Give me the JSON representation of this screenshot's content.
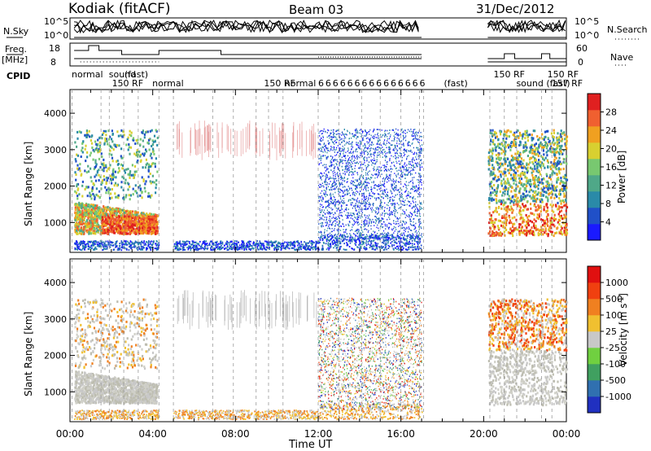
{
  "header": {
    "site": "Kodiak (fitACF)",
    "beam": "Beam 03",
    "date": "31/Dec/2012"
  },
  "strips": {
    "nsky_label": "N.Sky",
    "nsearch_label": "N.Search",
    "freq_label": "Freq.",
    "freq_unit": "[MHz]",
    "nave_label": "Nave",
    "cpid_label": "CPID",
    "nsky_ticks": [
      "10^5",
      "10^0"
    ],
    "freq_ticks": [
      "18",
      "8"
    ],
    "nave_ticks": [
      "60",
      "0"
    ]
  },
  "cpid_labels": [
    {
      "text": "normal",
      "t": 0.0,
      "row": 0
    },
    {
      "text": "sound",
      "t": 1.8,
      "row": 0
    },
    {
      "text": "(fast)",
      "t": 2.55,
      "row": 0
    },
    {
      "text": "normal",
      "t": 3.9,
      "row": 1
    },
    {
      "text": "150 RF",
      "t": 1.95,
      "row": 1
    },
    {
      "text": "150 RF",
      "t": 9.3,
      "row": 1
    },
    {
      "text": "normal",
      "t": 10.3,
      "row": 1
    },
    {
      "text": "150 RF",
      "t": 20.4,
      "row": 0
    },
    {
      "text": "sound (fast)",
      "t": 21.5,
      "row": 1
    },
    {
      "text": "157 RF",
      "t": 23.2,
      "row": 1
    },
    {
      "text": "150 RF",
      "t": 23.0,
      "row": 0
    },
    {
      "text": "(fast)",
      "t": 18.0,
      "row": 1
    }
  ],
  "chart_data": [
    {
      "type": "heatmap",
      "name": "Power panel",
      "xlabel": "Time UT",
      "ylabel": "Slant Range [km]",
      "xlim": [
        0,
        24
      ],
      "ylim": [
        180,
        4650
      ],
      "x_ticks": [
        "00:00",
        "04:00",
        "08:00",
        "12:00",
        "16:00",
        "20:00",
        "00:00"
      ],
      "y_ticks": [
        1000,
        2000,
        3000,
        4000
      ],
      "colorbar": {
        "label": "Power [dB]",
        "ticks": [
          4,
          8,
          12,
          16,
          20,
          24,
          28
        ],
        "range": [
          0,
          32
        ],
        "colors": [
          "#1a1aff",
          "#2050c8",
          "#2a8aa8",
          "#4fa888",
          "#78c870",
          "#d8d030",
          "#f0a020",
          "#f06030",
          "#e02020"
        ]
      },
      "data_gaps_ut": [
        [
          4.3,
          5.0
        ],
        [
          17.05,
          20.2
        ]
      ]
    },
    {
      "type": "heatmap",
      "name": "Velocity panel",
      "xlabel": "Time UT",
      "ylabel": "Slant Range [km]",
      "xlim": [
        0,
        24
      ],
      "ylim": [
        180,
        4650
      ],
      "x_ticks": [
        "00:00",
        "04:00",
        "08:00",
        "12:00",
        "16:00",
        "20:00",
        "00:00"
      ],
      "y_ticks": [
        1000,
        2000,
        3000,
        4000
      ],
      "colorbar": {
        "label": "Velocity [m s^-1]",
        "ticks": [
          1000,
          500,
          100,
          25,
          -25,
          -100,
          -500,
          -1000
        ],
        "colors": [
          "#2030c0",
          "#3070b0",
          "#40a060",
          "#70d040",
          "#c8c8c8",
          "#f0c030",
          "#f08020",
          "#f04010",
          "#e01010"
        ]
      }
    }
  ],
  "bottom_axis": {
    "label": "Time UT"
  }
}
